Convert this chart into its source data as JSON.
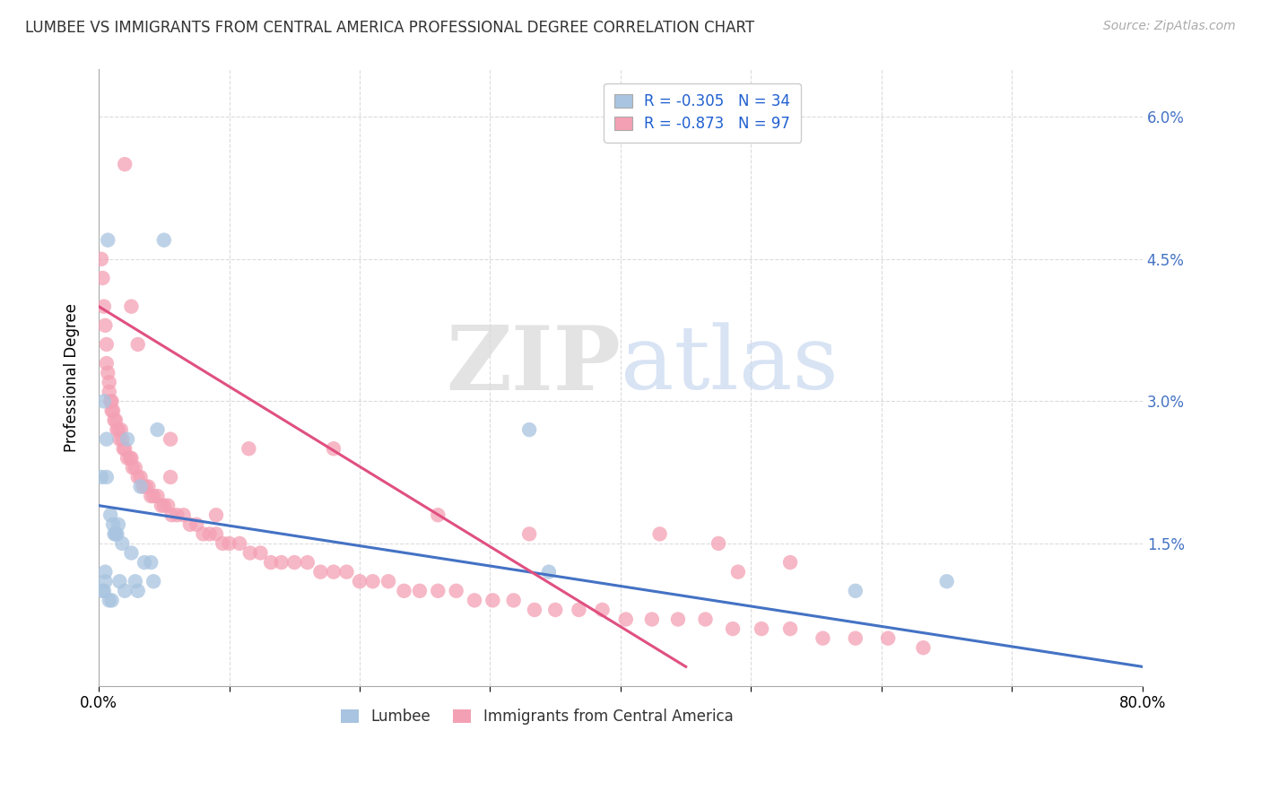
{
  "title": "LUMBEE VS IMMIGRANTS FROM CENTRAL AMERICA PROFESSIONAL DEGREE CORRELATION CHART",
  "source": "Source: ZipAtlas.com",
  "ylabel": "Professional Degree",
  "xlim": [
    0.0,
    0.8
  ],
  "ylim": [
    0.0,
    0.065
  ],
  "yticks": [
    0.0,
    0.015,
    0.03,
    0.045,
    0.06
  ],
  "ytick_labels": [
    "",
    "1.5%",
    "3.0%",
    "4.5%",
    "6.0%"
  ],
  "xticks": [
    0.0,
    0.1,
    0.2,
    0.3,
    0.4,
    0.5,
    0.6,
    0.7,
    0.8
  ],
  "xtick_labels": [
    "0.0%",
    "",
    "",
    "",
    "",
    "",
    "",
    "",
    "80.0%"
  ],
  "lumbee_R": -0.305,
  "lumbee_N": 34,
  "ca_R": -0.873,
  "ca_N": 97,
  "lumbee_color": "#a8c4e0",
  "ca_color": "#f4a0b4",
  "lumbee_line_color": "#4472c4",
  "ca_line_color": "#e05080",
  "background_color": "#ffffff",
  "grid_color": "#cccccc",
  "legend_R_color": "#2060d0",
  "lumbee_x": [
    0.002,
    0.003,
    0.004,
    0.004,
    0.005,
    0.005,
    0.006,
    0.006,
    0.007,
    0.008,
    0.009,
    0.01,
    0.011,
    0.012,
    0.013,
    0.014,
    0.015,
    0.016,
    0.018,
    0.02,
    0.022,
    0.025,
    0.028,
    0.03,
    0.032,
    0.035,
    0.04,
    0.042,
    0.045,
    0.05,
    0.33,
    0.345,
    0.58,
    0.65
  ],
  "lumbee_y": [
    0.022,
    0.01,
    0.01,
    0.03,
    0.011,
    0.012,
    0.022,
    0.026,
    0.047,
    0.009,
    0.018,
    0.009,
    0.017,
    0.016,
    0.016,
    0.016,
    0.017,
    0.011,
    0.015,
    0.01,
    0.026,
    0.014,
    0.011,
    0.01,
    0.021,
    0.013,
    0.013,
    0.011,
    0.027,
    0.047,
    0.027,
    0.012,
    0.01,
    0.011
  ],
  "ca_scatter_x": [
    0.002,
    0.003,
    0.004,
    0.005,
    0.006,
    0.006,
    0.007,
    0.008,
    0.008,
    0.009,
    0.01,
    0.01,
    0.011,
    0.012,
    0.013,
    0.014,
    0.015,
    0.016,
    0.017,
    0.018,
    0.019,
    0.02,
    0.022,
    0.024,
    0.025,
    0.026,
    0.028,
    0.03,
    0.032,
    0.034,
    0.036,
    0.038,
    0.04,
    0.042,
    0.045,
    0.048,
    0.05,
    0.053,
    0.056,
    0.06,
    0.065,
    0.07,
    0.075,
    0.08,
    0.085,
    0.09,
    0.095,
    0.1,
    0.108,
    0.116,
    0.124,
    0.132,
    0.14,
    0.15,
    0.16,
    0.17,
    0.18,
    0.19,
    0.2,
    0.21,
    0.222,
    0.234,
    0.246,
    0.26,
    0.274,
    0.288,
    0.302,
    0.318,
    0.334,
    0.35,
    0.368,
    0.386,
    0.404,
    0.424,
    0.444,
    0.465,
    0.486,
    0.508,
    0.53,
    0.555,
    0.58,
    0.605,
    0.632,
    0.055,
    0.115,
    0.26,
    0.33,
    0.43,
    0.475,
    0.53,
    0.49,
    0.18,
    0.09,
    0.055,
    0.03,
    0.025,
    0.02
  ],
  "ca_scatter_y": [
    0.045,
    0.043,
    0.04,
    0.038,
    0.036,
    0.034,
    0.033,
    0.032,
    0.031,
    0.03,
    0.03,
    0.029,
    0.029,
    0.028,
    0.028,
    0.027,
    0.027,
    0.026,
    0.027,
    0.026,
    0.025,
    0.025,
    0.024,
    0.024,
    0.024,
    0.023,
    0.023,
    0.022,
    0.022,
    0.021,
    0.021,
    0.021,
    0.02,
    0.02,
    0.02,
    0.019,
    0.019,
    0.019,
    0.018,
    0.018,
    0.018,
    0.017,
    0.017,
    0.016,
    0.016,
    0.016,
    0.015,
    0.015,
    0.015,
    0.014,
    0.014,
    0.013,
    0.013,
    0.013,
    0.013,
    0.012,
    0.012,
    0.012,
    0.011,
    0.011,
    0.011,
    0.01,
    0.01,
    0.01,
    0.01,
    0.009,
    0.009,
    0.009,
    0.008,
    0.008,
    0.008,
    0.008,
    0.007,
    0.007,
    0.007,
    0.007,
    0.006,
    0.006,
    0.006,
    0.005,
    0.005,
    0.005,
    0.004,
    0.022,
    0.025,
    0.018,
    0.016,
    0.016,
    0.015,
    0.013,
    0.012,
    0.025,
    0.018,
    0.026,
    0.036,
    0.04,
    0.055
  ]
}
